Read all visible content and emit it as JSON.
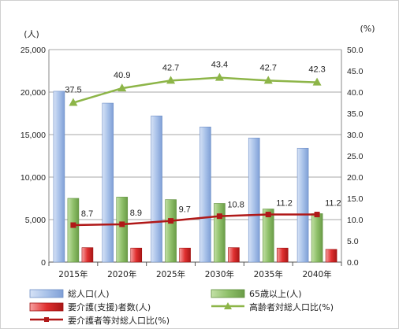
{
  "chart_data": {
    "type": "bar",
    "categories": [
      "2015年",
      "2020年",
      "2025年",
      "2030年",
      "2035年",
      "2040年"
    ],
    "series": [
      {
        "name": "総人口(人)",
        "type": "bar",
        "axis": "left",
        "color": "#a9c2e9",
        "values": [
          20100,
          18700,
          17200,
          15900,
          14600,
          13400
        ]
      },
      {
        "name": "65歳以上(人)",
        "type": "bar",
        "axis": "left",
        "color": "#8fc06a",
        "values": [
          7500,
          7650,
          7350,
          6900,
          6250,
          5700
        ]
      },
      {
        "name": "要介護(支援)者数(人)",
        "type": "bar",
        "axis": "left",
        "color": "#e03030",
        "values": [
          1700,
          1650,
          1650,
          1700,
          1650,
          1500
        ]
      },
      {
        "name": "高齢者対総人口比(%)",
        "type": "line",
        "axis": "right",
        "color": "#8db548",
        "values": [
          37.5,
          40.9,
          42.7,
          43.4,
          42.7,
          42.3
        ]
      },
      {
        "name": "要介護者等対総人口比(%)",
        "type": "line",
        "axis": "right",
        "color": "#b01818",
        "values": [
          8.7,
          8.9,
          9.7,
          10.8,
          11.2,
          11.2
        ]
      }
    ],
    "left_axis": {
      "unit": "(人)",
      "ylim": [
        0,
        25000
      ],
      "ticks": [
        "0",
        "5,000",
        "10,000",
        "15,000",
        "20,000",
        "25,000"
      ]
    },
    "right_axis": {
      "unit": "(%)",
      "ylim": [
        0,
        50
      ],
      "ticks": [
        "0.0",
        "5.0",
        "10.0",
        "15.0",
        "20.0",
        "25.0",
        "30.0",
        "35.0",
        "40.0",
        "45.0",
        "50.0"
      ]
    },
    "grid": true,
    "legend_position": "bottom"
  }
}
